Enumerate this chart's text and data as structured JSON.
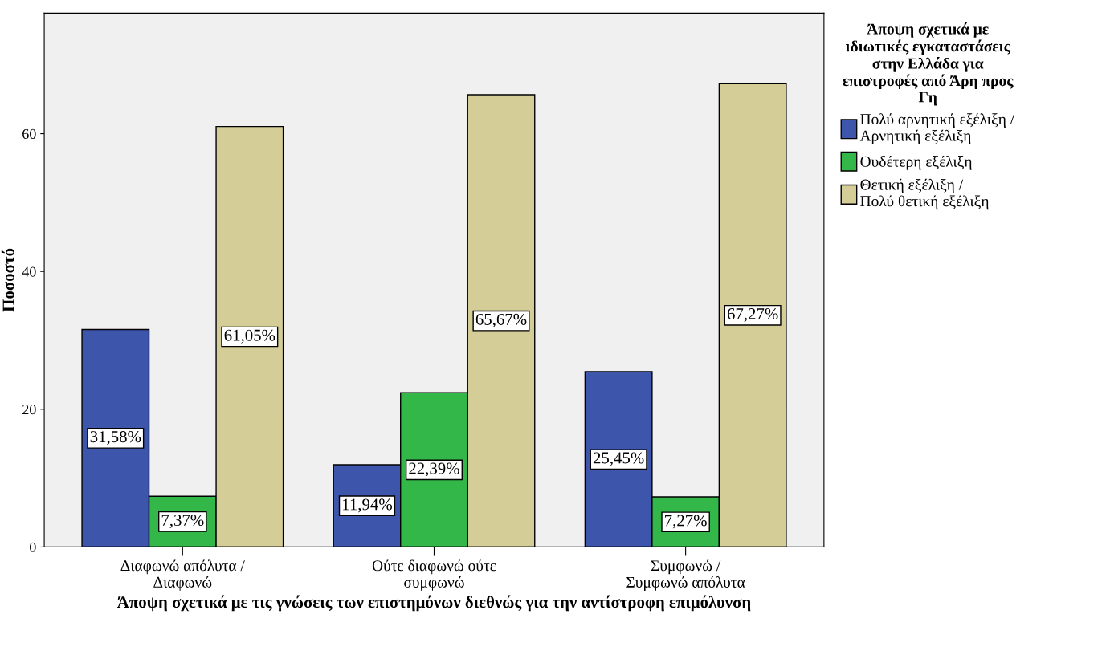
{
  "chart_data": {
    "type": "bar",
    "xlabel": "Άποψη σχετικά με τις γνώσεις των επιστημόνων διεθνώς για την αντίστροφη επιμόλυνση",
    "ylabel": "Ποσοστό",
    "legend_title": "Άποψη σχετικά με ιδιωτικές εγκαταστάσεις στην Ελλάδα για επιστροφές από Άρη προς Γη",
    "categories": [
      "Διαφωνώ απόλυτα /\nΔιαφωνώ",
      "Ούτε διαφωνώ ούτε\nσυμφωνώ",
      "Συμφωνώ /\nΣυμφωνώ απόλυτα"
    ],
    "series": [
      {
        "name": "Πολύ αρνητική εξέλιξη /\nΑρνητική εξέλιξη",
        "color": "#3d55ab",
        "values": [
          31.58,
          11.94,
          25.45
        ],
        "value_labels": [
          "31,58%",
          "11,94%",
          "25,45%"
        ]
      },
      {
        "name": "Ουδέτερη εξέλιξη",
        "color": "#33b748",
        "values": [
          7.37,
          22.39,
          7.27
        ],
        "value_labels": [
          "7,37%",
          "22,39%",
          "7,27%"
        ]
      },
      {
        "name": "Θετική εξέλιξη /\nΠολύ θετική εξέλιξη",
        "color": "#d4cd98",
        "values": [
          61.05,
          65.67,
          67.27
        ],
        "value_labels": [
          "61,05%",
          "65,67%",
          "67,27%"
        ]
      }
    ],
    "ylim": [
      0,
      77.5
    ],
    "yticks": [
      0,
      20,
      40,
      60
    ],
    "grid": false,
    "legend": "right"
  }
}
